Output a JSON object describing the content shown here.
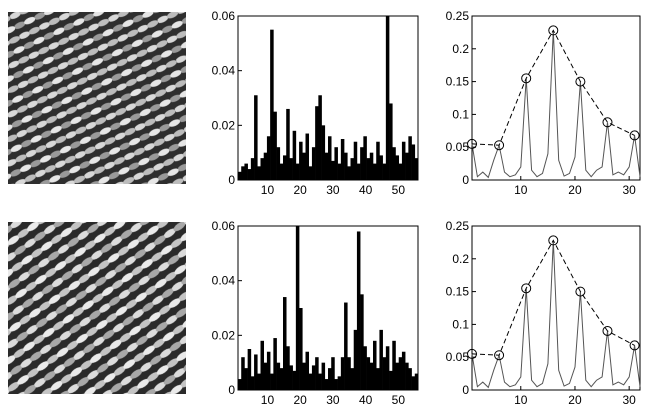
{
  "rows": [
    {
      "texture_label": "",
      "hist_label": "",
      "spec_label": ""
    },
    {
      "texture_label": "",
      "hist_label": "",
      "spec_label": ""
    }
  ],
  "chart_data": [
    {
      "type": "bar",
      "title": "",
      "xlabel": "",
      "ylabel": "",
      "xlim": [
        1,
        56
      ],
      "ylim": [
        0,
        0.06
      ],
      "xticks": [
        10,
        20,
        30,
        40,
        50
      ],
      "yticks": [
        0,
        0.02,
        0.04,
        0.06
      ],
      "x": [
        1,
        2,
        3,
        4,
        5,
        6,
        7,
        8,
        9,
        10,
        11,
        12,
        13,
        14,
        15,
        16,
        17,
        18,
        19,
        20,
        21,
        22,
        23,
        24,
        25,
        26,
        27,
        28,
        29,
        30,
        31,
        32,
        33,
        34,
        35,
        36,
        37,
        38,
        39,
        40,
        41,
        42,
        43,
        44,
        45,
        46,
        47,
        48,
        49,
        50,
        51,
        52,
        53,
        54,
        55,
        56
      ],
      "values": [
        0.003,
        0.005,
        0.006,
        0.004,
        0.008,
        0.031,
        0.005,
        0.008,
        0.01,
        0.016,
        0.055,
        0.025,
        0.012,
        0.006,
        0.009,
        0.026,
        0.008,
        0.018,
        0.006,
        0.014,
        0.01,
        0.017,
        0.005,
        0.012,
        0.027,
        0.031,
        0.02,
        0.01,
        0.016,
        0.007,
        0.012,
        0.006,
        0.015,
        0.01,
        0.005,
        0.008,
        0.014,
        0.006,
        0.012,
        0.016,
        0.008,
        0.01,
        0.006,
        0.014,
        0.009,
        0.006,
        0.06,
        0.028,
        0.012,
        0.009,
        0.006,
        0.014,
        0.01,
        0.016,
        0.013,
        0.008
      ]
    },
    {
      "type": "line",
      "title": "",
      "xlabel": "",
      "ylabel": "",
      "xlim": [
        1,
        32
      ],
      "ylim": [
        0,
        0.25
      ],
      "xticks": [
        10,
        20,
        30
      ],
      "yticks": [
        0,
        0.05,
        0.1,
        0.15,
        0.2,
        0.25
      ],
      "x": [
        1,
        2,
        3,
        4,
        5,
        6,
        7,
        8,
        9,
        10,
        11,
        12,
        13,
        14,
        15,
        16,
        17,
        18,
        19,
        20,
        21,
        22,
        23,
        24,
        25,
        26,
        27,
        28,
        29,
        30,
        31,
        32
      ],
      "values": [
        0.055,
        0.005,
        0.012,
        0.004,
        0.03,
        0.053,
        0.012,
        0.005,
        0.008,
        0.02,
        0.155,
        0.015,
        0.005,
        0.01,
        0.04,
        0.228,
        0.03,
        0.006,
        0.01,
        0.035,
        0.15,
        0.015,
        0.005,
        0.015,
        0.02,
        0.088,
        0.008,
        0.012,
        0.008,
        0.02,
        0.068,
        0.005
      ],
      "peaks": {
        "x": [
          1,
          6,
          11,
          16,
          21,
          26,
          31
        ],
        "values": [
          0.055,
          0.053,
          0.155,
          0.228,
          0.15,
          0.088,
          0.068
        ]
      }
    },
    {
      "type": "bar",
      "title": "",
      "xlabel": "",
      "ylabel": "",
      "xlim": [
        1,
        56
      ],
      "ylim": [
        0,
        0.06
      ],
      "xticks": [
        10,
        20,
        30,
        40,
        50
      ],
      "yticks": [
        0,
        0.02,
        0.04,
        0.06
      ],
      "x": [
        1,
        2,
        3,
        4,
        5,
        6,
        7,
        8,
        9,
        10,
        11,
        12,
        13,
        14,
        15,
        16,
        17,
        18,
        19,
        20,
        21,
        22,
        23,
        24,
        25,
        26,
        27,
        28,
        29,
        30,
        31,
        32,
        33,
        34,
        35,
        36,
        37,
        38,
        39,
        40,
        41,
        42,
        43,
        44,
        45,
        46,
        47,
        48,
        49,
        50,
        51,
        52,
        53,
        54,
        55,
        56
      ],
      "values": [
        0.004,
        0.012,
        0.008,
        0.015,
        0.005,
        0.013,
        0.006,
        0.018,
        0.01,
        0.014,
        0.006,
        0.019,
        0.01,
        0.008,
        0.034,
        0.016,
        0.009,
        0.007,
        0.06,
        0.03,
        0.01,
        0.014,
        0.006,
        0.009,
        0.012,
        0.006,
        0.01,
        0.004,
        0.008,
        0.012,
        0.004,
        0.005,
        0.012,
        0.032,
        0.012,
        0.008,
        0.022,
        0.058,
        0.035,
        0.016,
        0.012,
        0.01,
        0.018,
        0.008,
        0.022,
        0.012,
        0.016,
        0.007,
        0.018,
        0.01,
        0.012,
        0.014,
        0.01,
        0.008,
        0.005,
        0.006
      ]
    },
    {
      "type": "line",
      "title": "",
      "xlabel": "",
      "ylabel": "",
      "xlim": [
        1,
        32
      ],
      "ylim": [
        0,
        0.25
      ],
      "xticks": [
        10,
        20,
        30
      ],
      "yticks": [
        0,
        0.05,
        0.1,
        0.15,
        0.2,
        0.25
      ],
      "x": [
        1,
        2,
        3,
        4,
        5,
        6,
        7,
        8,
        9,
        10,
        11,
        12,
        13,
        14,
        15,
        16,
        17,
        18,
        19,
        20,
        21,
        22,
        23,
        24,
        25,
        26,
        27,
        28,
        29,
        30,
        31,
        32
      ],
      "values": [
        0.055,
        0.005,
        0.012,
        0.004,
        0.03,
        0.053,
        0.012,
        0.005,
        0.008,
        0.02,
        0.155,
        0.015,
        0.005,
        0.01,
        0.04,
        0.228,
        0.03,
        0.006,
        0.01,
        0.035,
        0.15,
        0.015,
        0.005,
        0.015,
        0.02,
        0.09,
        0.008,
        0.012,
        0.008,
        0.02,
        0.068,
        0.005
      ],
      "peaks": {
        "x": [
          1,
          6,
          11,
          16,
          21,
          26,
          31
        ],
        "values": [
          0.055,
          0.053,
          0.155,
          0.228,
          0.15,
          0.09,
          0.068
        ]
      }
    }
  ]
}
